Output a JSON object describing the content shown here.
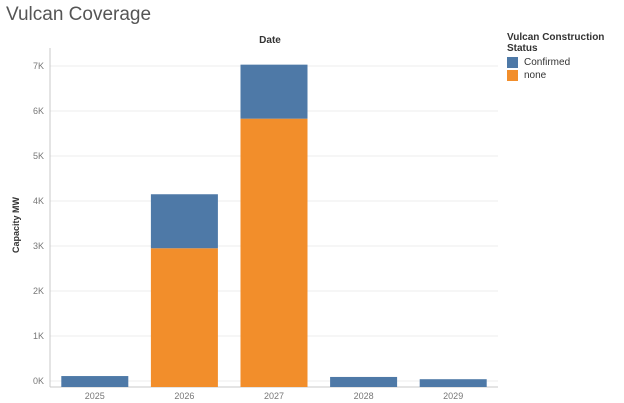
{
  "title": "Vulcan Coverage",
  "colors": {
    "confirmed": "#4e79a7",
    "none": "#f28e2b",
    "grid": "#ececec",
    "axis": "#c8c8c8"
  },
  "chart_data": {
    "type": "bar",
    "stacked": true,
    "title": "Vulcan Coverage",
    "column_header": "Date",
    "xlabel": "",
    "ylabel": "Capacity MW",
    "categories": [
      "2025",
      "2026",
      "2027",
      "2028",
      "2029"
    ],
    "series": [
      {
        "name": "none",
        "color": "#f28e2b",
        "values": [
          0,
          2950,
          5830,
          0,
          0
        ]
      },
      {
        "name": "Confirmed",
        "color": "#4e79a7",
        "values": [
          110,
          1200,
          1200,
          90,
          40
        ]
      }
    ],
    "yticks": [
      0,
      1000,
      2000,
      3000,
      4000,
      5000,
      6000,
      7000
    ],
    "ytick_labels": [
      "0K",
      "1K",
      "2K",
      "3K",
      "4K",
      "5K",
      "6K",
      "7K"
    ],
    "ylim": [
      0,
      7100
    ],
    "grid": true,
    "legend": {
      "title": "Vulcan Construction Status",
      "position": "top-right",
      "items": [
        {
          "label": "Confirmed",
          "color": "#4e79a7"
        },
        {
          "label": "none",
          "color": "#f28e2b"
        }
      ]
    }
  }
}
